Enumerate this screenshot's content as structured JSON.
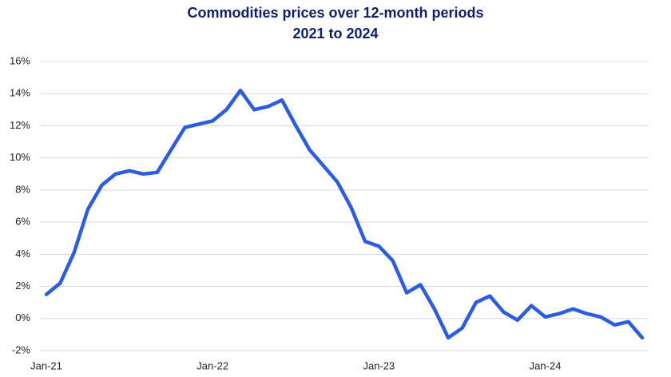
{
  "chart_data": {
    "type": "line",
    "title": "Commodities prices over 12-month periods",
    "subtitle": "2021 to 2024",
    "categories": [
      "Jan-21",
      null,
      null,
      null,
      null,
      null,
      null,
      null,
      null,
      null,
      null,
      null,
      "Jan-22",
      null,
      null,
      null,
      null,
      null,
      null,
      null,
      null,
      null,
      null,
      null,
      "Jan-23",
      null,
      null,
      null,
      null,
      null,
      null,
      null,
      null,
      null,
      null,
      null,
      "Jan-24",
      null,
      null,
      null,
      null,
      null,
      null,
      null
    ],
    "series": [
      {
        "name": "Commodities",
        "color": "#2b5ce6",
        "values": [
          1.5,
          2.2,
          4.1,
          6.8,
          8.3,
          9.0,
          9.2,
          9.0,
          9.1,
          10.5,
          11.9,
          12.1,
          12.3,
          13.0,
          14.2,
          13.0,
          13.2,
          13.6,
          12.0,
          10.5,
          9.5,
          8.5,
          6.9,
          4.8,
          4.5,
          3.6,
          1.6,
          2.1,
          0.6,
          -1.2,
          -0.6,
          1.0,
          1.4,
          0.4,
          -0.1,
          0.8,
          0.1,
          0.3,
          0.6,
          0.3,
          0.1,
          -0.4,
          -0.2,
          -1.2
        ]
      }
    ],
    "ylim": [
      -2,
      16
    ],
    "yticks": [
      {
        "value": -2,
        "label": "-2%"
      },
      {
        "value": 0,
        "label": "0%"
      },
      {
        "value": 2,
        "label": "2%"
      },
      {
        "value": 4,
        "label": "4%"
      },
      {
        "value": 6,
        "label": "6%"
      },
      {
        "value": 8,
        "label": "8%"
      },
      {
        "value": 10,
        "label": "10%"
      },
      {
        "value": 12,
        "label": "12%"
      },
      {
        "value": 14,
        "label": "14%"
      },
      {
        "value": 16,
        "label": "16%"
      }
    ],
    "grid": true
  }
}
